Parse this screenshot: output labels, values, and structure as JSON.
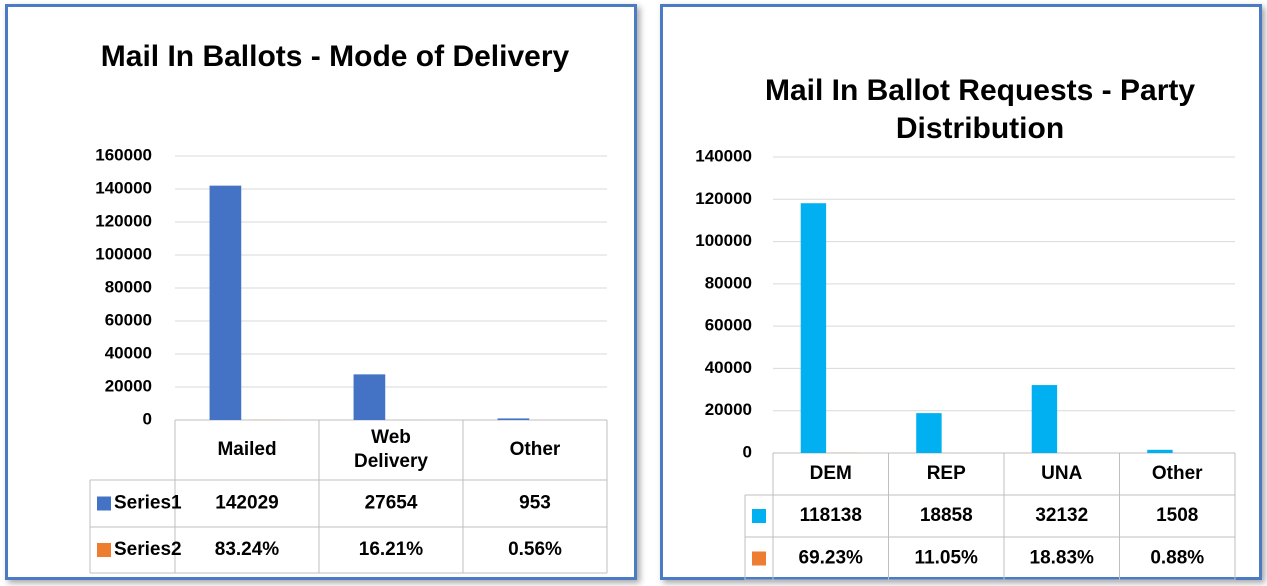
{
  "chart_data": [
    {
      "type": "bar",
      "title": "Mail In Ballots - Mode of Delivery",
      "categories": [
        "Mailed",
        "Web Delivery",
        "Other"
      ],
      "series": [
        {
          "name": "Series1",
          "color": "#4472c4",
          "values": [
            142029,
            27654,
            953
          ]
        },
        {
          "name": "Series2",
          "color": "#ed7d31",
          "values": [
            83.24,
            16.21,
            0.56
          ],
          "value_labels": [
            "83.24%",
            "16.21%",
            "0.56%"
          ]
        }
      ],
      "ylim": [
        0,
        160000
      ],
      "yticks": [
        0,
        20000,
        40000,
        60000,
        80000,
        100000,
        120000,
        140000,
        160000
      ],
      "grid": true
    },
    {
      "type": "bar",
      "title": "Mail In Ballot Requests - Party Distribution",
      "categories": [
        "DEM",
        "REP",
        "UNA",
        "Other"
      ],
      "series": [
        {
          "color": "#00b0f0",
          "values": [
            118138,
            18858,
            32132,
            1508
          ]
        },
        {
          "color": "#ed7d31",
          "values": [
            69.23,
            11.05,
            18.83,
            0.88
          ],
          "value_labels": [
            "69.23%",
            "11.05%",
            "18.83%",
            "0.88%"
          ]
        }
      ],
      "ylim": [
        0,
        140000
      ],
      "yticks": [
        0,
        20000,
        40000,
        60000,
        80000,
        100000,
        120000,
        140000
      ],
      "grid": true
    }
  ]
}
